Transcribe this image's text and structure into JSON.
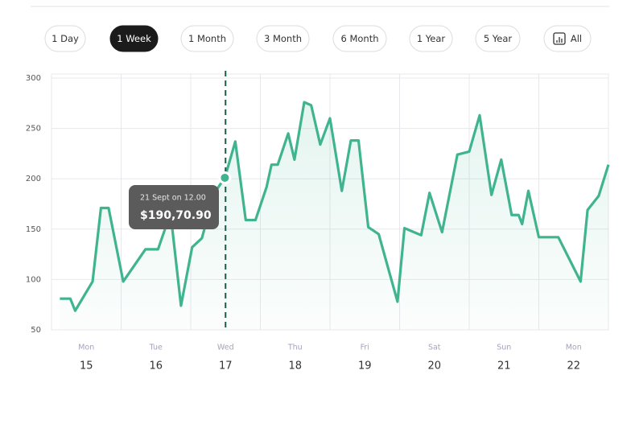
{
  "range_buttons": [
    "1 Day",
    "1 Week",
    "1 Month",
    "3 Month",
    "6 Month",
    "1 Year",
    "5 Year",
    "All"
  ],
  "active_range": "1 Week",
  "chart_data": {
    "type": "line",
    "x": [
      14.62,
      14.77,
      14.84,
      15.09,
      15.21,
      15.32,
      15.53,
      15.85,
      16.03,
      16.21,
      16.36,
      16.52,
      16.66,
      16.84,
      16.99,
      17.14,
      17.29,
      17.43,
      17.59,
      17.66,
      17.75,
      17.9,
      17.99,
      18.13,
      18.23,
      18.36,
      18.5,
      18.67,
      18.8,
      18.91,
      19.05,
      19.2,
      19.47,
      19.57,
      19.81,
      19.93,
      20.11,
      20.33,
      20.5,
      20.65,
      20.82,
      20.96,
      21.11,
      21.21,
      21.26,
      21.35,
      21.5,
      21.78,
      22.1,
      22.2,
      22.36,
      22.5
    ],
    "series": [
      {
        "color": "#3fb48f",
        "values": [
          81,
          81,
          69,
          98,
          171,
          171,
          98,
          130,
          130,
          166,
          74,
          132,
          141,
          186,
          201,
          237,
          159,
          159,
          192,
          214,
          214,
          245,
          219,
          276,
          273,
          234,
          260,
          188,
          238,
          238,
          152,
          145,
          78,
          151,
          144,
          186,
          147,
          224,
          227,
          263,
          184,
          219,
          164,
          164,
          155,
          188,
          142,
          142,
          98,
          169,
          183,
          214
        ]
      }
    ],
    "xlim": [
      14.5,
      22.5
    ],
    "xticks": [
      15,
      16,
      17,
      18,
      19,
      20,
      21,
      22
    ],
    "weekdays": [
      "Mon",
      "Tue",
      "Wed",
      "Thu",
      "Fri",
      "Sat",
      "Sun",
      "Mon"
    ],
    "ylim": [
      50,
      300
    ],
    "yticks": [
      50,
      100,
      150,
      200,
      250,
      300
    ],
    "grid": true,
    "crosshair_x": 17,
    "tooltip": {
      "date": "21 Sept on 12.00",
      "value": "$190,70.90"
    }
  }
}
